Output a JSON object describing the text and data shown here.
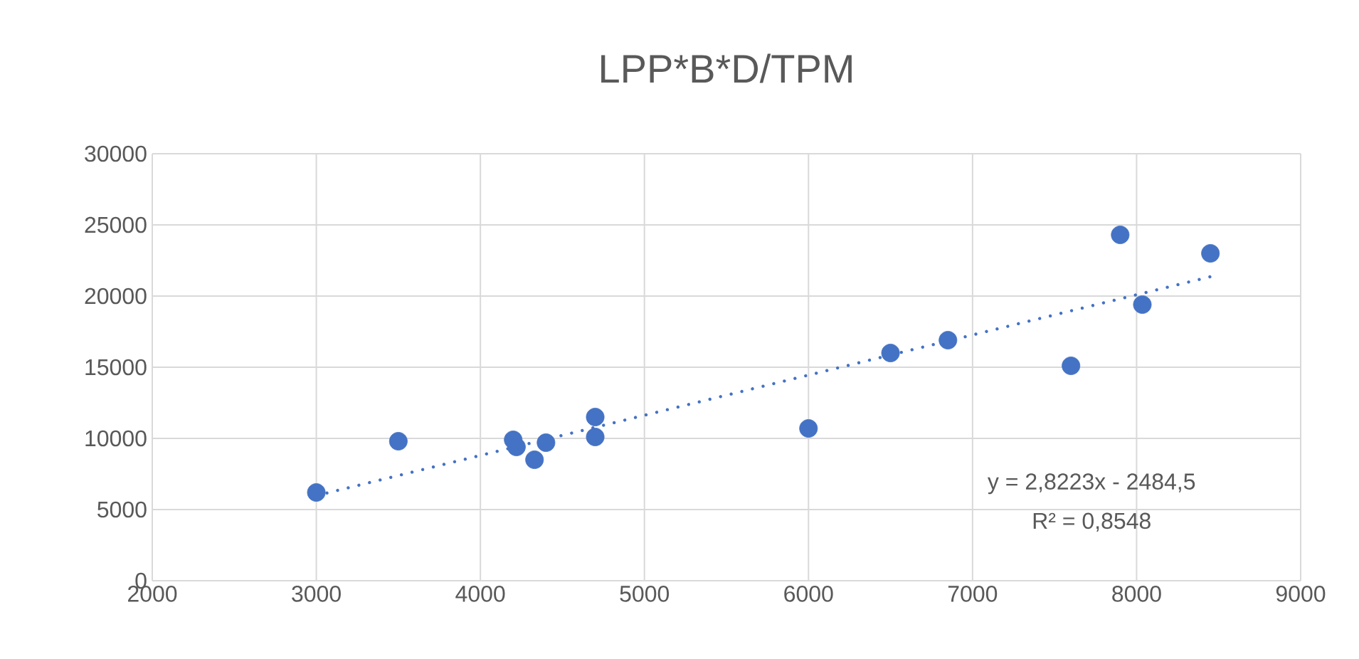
{
  "chart_data": {
    "type": "scatter",
    "title": "LPP*B*D/TPM",
    "marker": "circle",
    "grid": true,
    "xlim": [
      2000,
      9000
    ],
    "xticks": [
      2000,
      3000,
      4000,
      5000,
      6000,
      7000,
      8000,
      9000
    ],
    "ylim": [
      0,
      30000
    ],
    "yticks": [
      0,
      5000,
      10000,
      15000,
      20000,
      25000,
      30000
    ],
    "series": [
      {
        "color": "#4472c4",
        "x": [
          3000,
          3500,
          4200,
          4220,
          4330,
          4400,
          4700,
          4700,
          6000,
          6500,
          6850,
          7600,
          7900,
          8035,
          8450
        ],
        "values": [
          6200,
          9800,
          9900,
          9400,
          8500,
          9700,
          11500,
          10100,
          10700,
          16000,
          16900,
          15100,
          24300,
          19400,
          23000
        ]
      },
      {
        "type": "line",
        "color": "#4472c4",
        "line_style": "dotted",
        "marker": "none",
        "x": [
          3000,
          8450
        ],
        "values": [
          5980,
          21360
        ]
      }
    ],
    "annotations": [
      "y = 2,8223x - 2484,5",
      "R² = 0,8548"
    ]
  }
}
